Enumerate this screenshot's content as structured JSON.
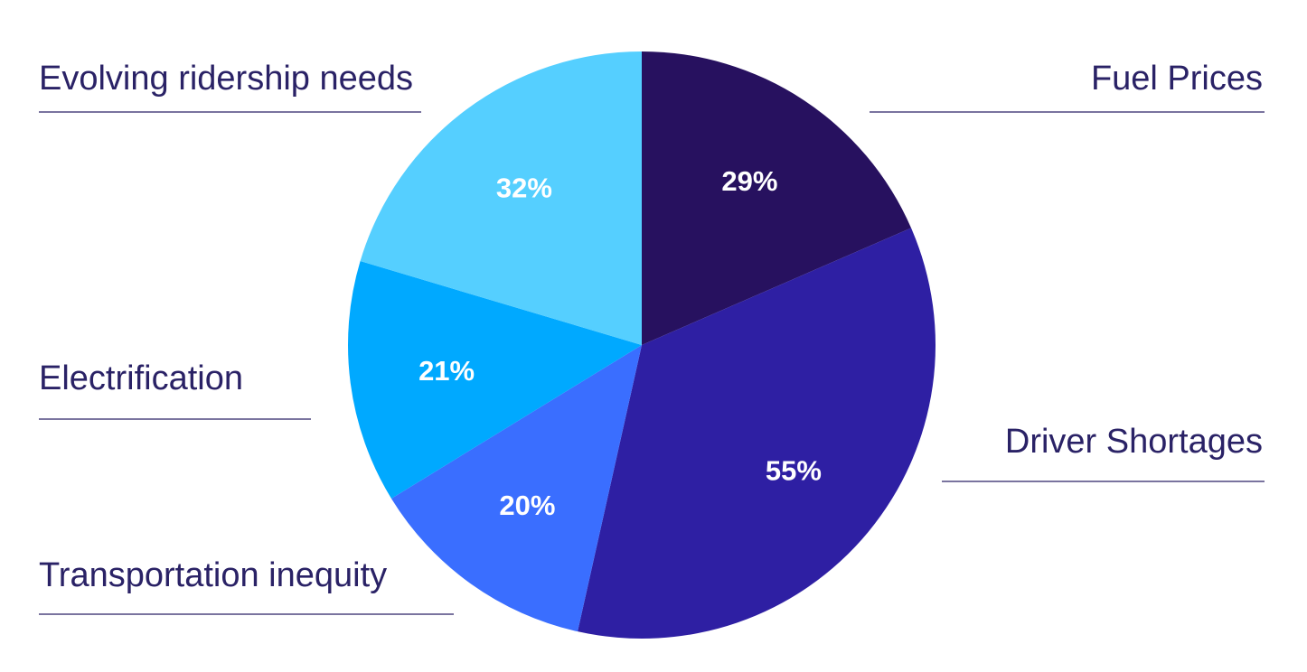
{
  "chart_data": {
    "type": "pie",
    "title": "",
    "legend": "outside",
    "slices": [
      {
        "name": "Fuel Prices",
        "value": 29,
        "label": "29%",
        "color": "#27115f"
      },
      {
        "name": "Driver Shortages",
        "value": 55,
        "label": "55%",
        "color": "#2e1fa3"
      },
      {
        "name": "Transportation inequity",
        "value": 20,
        "label": "20%",
        "color": "#3a6eff"
      },
      {
        "name": "Electrification",
        "value": 21,
        "label": "21%",
        "color": "#00a9ff"
      },
      {
        "name": "Evolving ridership needs",
        "value": 32,
        "label": "32%",
        "color": "#55cfff"
      }
    ]
  }
}
